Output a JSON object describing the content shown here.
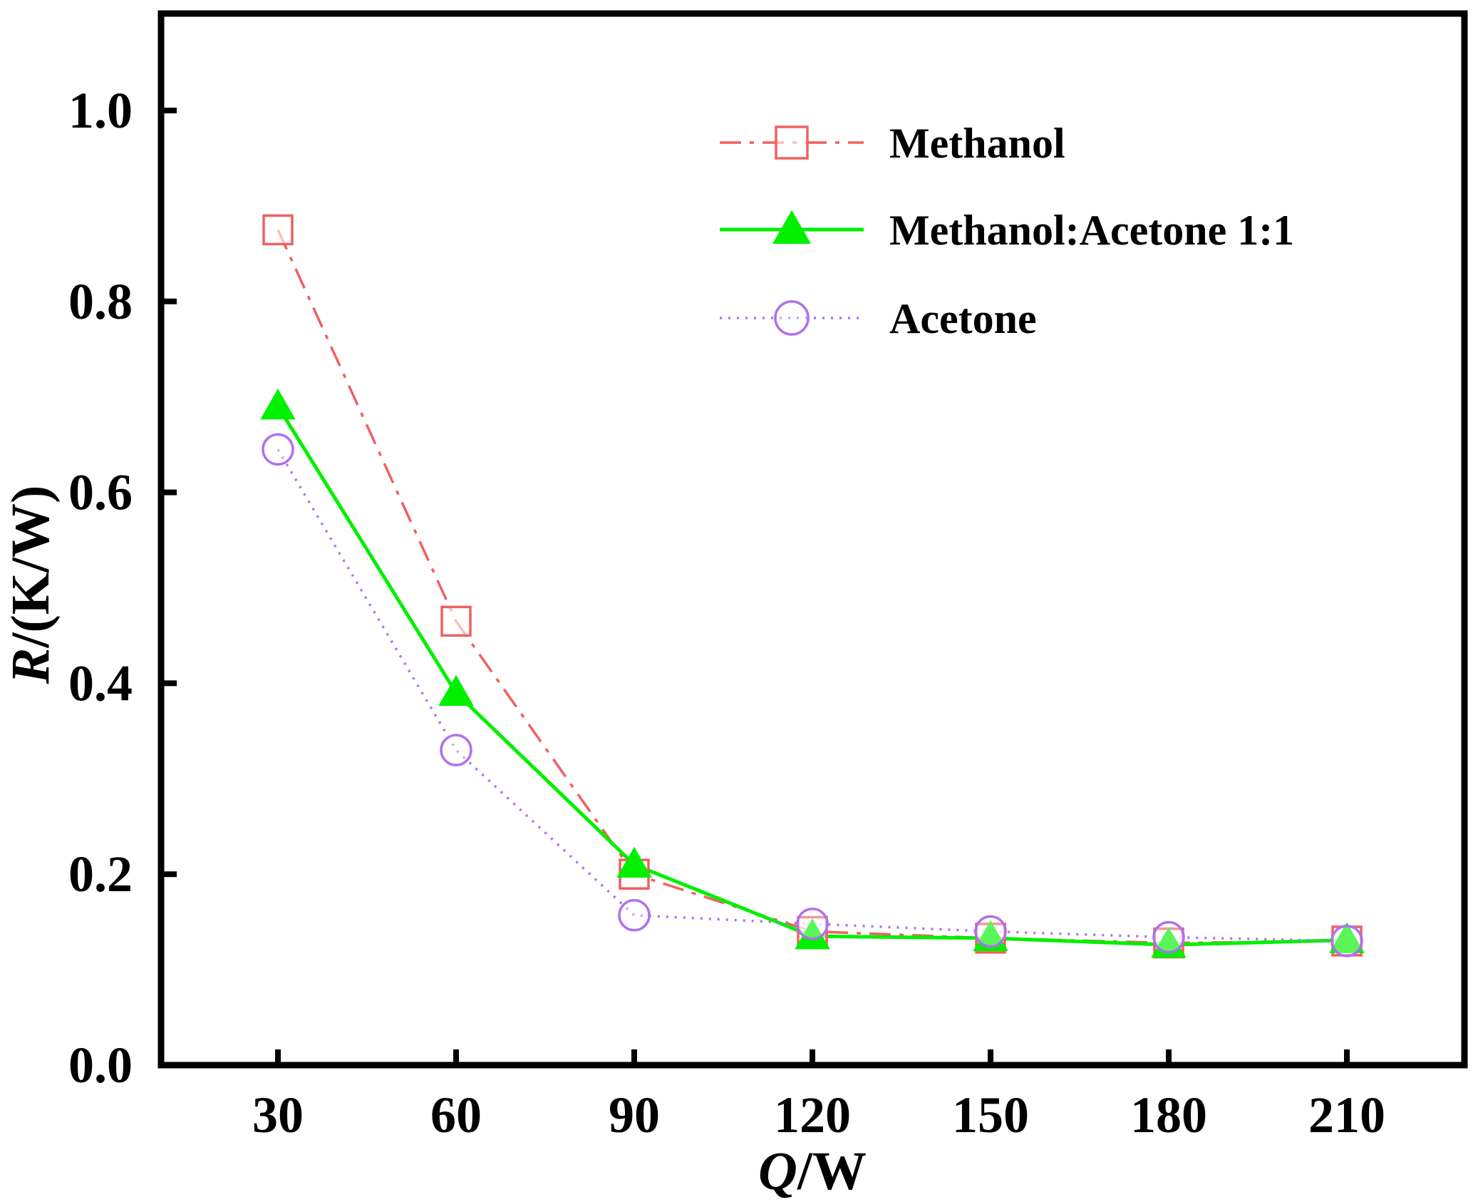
{
  "chart_data": {
    "type": "line",
    "x": [
      30,
      60,
      90,
      120,
      150,
      180,
      210
    ],
    "xticks": [
      "30",
      "60",
      "90",
      "120",
      "150",
      "180",
      "210"
    ],
    "yticks": [
      "0.0",
      "0.2",
      "0.4",
      "0.6",
      "0.8",
      "1.0"
    ],
    "ylim": [
      0,
      1.1
    ],
    "xlabel": {
      "italic": "Q",
      "rest": "/W"
    },
    "ylabel": {
      "italic": "R",
      "rest": "/(K/W)"
    },
    "legend_position": "top-right",
    "grid": false,
    "series": [
      {
        "name": "Methanol",
        "values": [
          0.875,
          0.465,
          0.2,
          0.14,
          0.133,
          0.128,
          0.13
        ],
        "color": "#f06060",
        "marker": "open-square",
        "line_style": "dash-dot"
      },
      {
        "name": "Methanol:Acetone 1:1",
        "values": [
          0.69,
          0.39,
          0.21,
          0.135,
          0.133,
          0.126,
          0.131
        ],
        "color": "#00f000",
        "marker": "filled-triangle",
        "line_style": "solid"
      },
      {
        "name": "Acetone",
        "values": [
          0.645,
          0.33,
          0.157,
          0.148,
          0.14,
          0.134,
          0.13
        ],
        "color": "#b070f0",
        "marker": "open-circle",
        "line_style": "dotted"
      }
    ]
  }
}
